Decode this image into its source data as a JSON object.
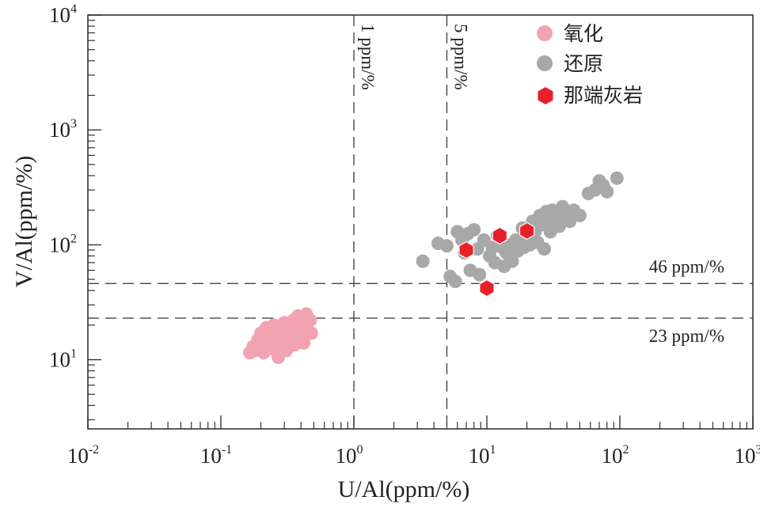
{
  "chart_data": {
    "type": "scatter",
    "scale": "log-log",
    "xlabel": "U/Al(ppm/%)",
    "ylabel": "V/Al(ppm/%)",
    "xlim": [
      0.01,
      1000
    ],
    "ylim": [
      2.5,
      10000
    ],
    "x_ticks": [
      {
        "value": 0.01,
        "base": "10",
        "exp": "-2"
      },
      {
        "value": 0.1,
        "base": "10",
        "exp": "-1"
      },
      {
        "value": 1,
        "base": "10",
        "exp": "0"
      },
      {
        "value": 10,
        "base": "10",
        "exp": "1"
      },
      {
        "value": 100,
        "base": "10",
        "exp": "2"
      },
      {
        "value": 1000,
        "base": "10",
        "exp": "3"
      }
    ],
    "y_ticks": [
      {
        "value": 10,
        "base": "10",
        "exp": "1"
      },
      {
        "value": 100,
        "base": "10",
        "exp": "2"
      },
      {
        "value": 1000,
        "base": "10",
        "exp": "3"
      },
      {
        "value": 10000,
        "base": "10",
        "exp": "4"
      }
    ],
    "reference_lines": [
      {
        "axis": "x",
        "value": 1,
        "label": "1 ppm/%"
      },
      {
        "axis": "x",
        "value": 5,
        "label": "5 ppm/%"
      },
      {
        "axis": "y",
        "value": 46,
        "label": "46 ppm/%"
      },
      {
        "axis": "y",
        "value": 23,
        "label": "23 ppm/%"
      }
    ],
    "legend": {
      "position": "top-right"
    },
    "series": [
      {
        "name": "氧化",
        "marker": "circle",
        "color": "#f2a3b1",
        "points": [
          [
            0.165,
            11.5
          ],
          [
            0.175,
            13.0
          ],
          [
            0.18,
            12.0
          ],
          [
            0.19,
            15.0
          ],
          [
            0.2,
            17.0
          ],
          [
            0.2,
            13.5
          ],
          [
            0.21,
            11.5
          ],
          [
            0.22,
            19.0
          ],
          [
            0.22,
            14.0
          ],
          [
            0.23,
            16.5
          ],
          [
            0.24,
            12.5
          ],
          [
            0.25,
            20.0
          ],
          [
            0.25,
            17.0
          ],
          [
            0.26,
            15.0
          ],
          [
            0.27,
            10.5
          ],
          [
            0.28,
            18.0
          ],
          [
            0.28,
            13.0
          ],
          [
            0.3,
            21.0
          ],
          [
            0.3,
            16.0
          ],
          [
            0.31,
            12.0
          ],
          [
            0.32,
            19.0
          ],
          [
            0.33,
            15.0
          ],
          [
            0.35,
            22.0
          ],
          [
            0.35,
            17.0
          ],
          [
            0.36,
            13.5
          ],
          [
            0.38,
            24.0
          ],
          [
            0.38,
            19.5
          ],
          [
            0.4,
            16.0
          ],
          [
            0.41,
            21.0
          ],
          [
            0.42,
            14.0
          ],
          [
            0.44,
            25.0
          ],
          [
            0.45,
            18.0
          ],
          [
            0.47,
            22.0
          ],
          [
            0.48,
            17.0
          ]
        ]
      },
      {
        "name": "还原",
        "marker": "circle",
        "color": "#a8a8a8",
        "points": [
          [
            3.3,
            72
          ],
          [
            4.3,
            103
          ],
          [
            5.0,
            98
          ],
          [
            5.3,
            53
          ],
          [
            5.8,
            48
          ],
          [
            6.0,
            130
          ],
          [
            6.5,
            110
          ],
          [
            6.8,
            85
          ],
          [
            7.2,
            125
          ],
          [
            7.5,
            60
          ],
          [
            8.0,
            135
          ],
          [
            8.5,
            92
          ],
          [
            8.8,
            55
          ],
          [
            9.5,
            110
          ],
          [
            10.5,
            80
          ],
          [
            11.0,
            95
          ],
          [
            11.5,
            70
          ],
          [
            12.0,
            120
          ],
          [
            13.0,
            95
          ],
          [
            13.5,
            65
          ],
          [
            14.0,
            85
          ],
          [
            15.0,
            100
          ],
          [
            15.5,
            72
          ],
          [
            16.5,
            110
          ],
          [
            17.0,
            88
          ],
          [
            18.5,
            140
          ],
          [
            19.0,
            95
          ],
          [
            20.0,
            120
          ],
          [
            21.0,
            100
          ],
          [
            22.0,
            160
          ],
          [
            23.0,
            130
          ],
          [
            24.0,
            105
          ],
          [
            25.0,
            180
          ],
          [
            26.0,
            150
          ],
          [
            27.0,
            92
          ],
          [
            28.0,
            195
          ],
          [
            29.0,
            160
          ],
          [
            30.0,
            130
          ],
          [
            31.0,
            200
          ],
          [
            33.0,
            170
          ],
          [
            35.0,
            145
          ],
          [
            37.0,
            215
          ],
          [
            39.0,
            175
          ],
          [
            42.0,
            160
          ],
          [
            45.0,
            200
          ],
          [
            50.0,
            180
          ],
          [
            58.0,
            280
          ],
          [
            65.0,
            300
          ],
          [
            70.0,
            360
          ],
          [
            75.0,
            330
          ],
          [
            80.0,
            290
          ],
          [
            95.0,
            380
          ]
        ]
      },
      {
        "name": "那端灰岩",
        "marker": "hexagon",
        "color": "#e8202a",
        "points": [
          [
            7.0,
            90
          ],
          [
            10.0,
            42
          ],
          [
            12.5,
            120
          ],
          [
            20.0,
            132
          ]
        ]
      }
    ]
  }
}
